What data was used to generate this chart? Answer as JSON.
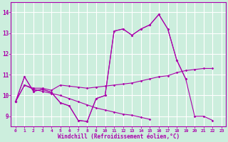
{
  "background_color": "#cceedd",
  "grid_color": "#ffffff",
  "line_color": "#aa00aa",
  "xlabel": "Windchill (Refroidissement éolien,°C)",
  "xlabel_color": "#aa00aa",
  "ylim": [
    8.5,
    14.5
  ],
  "xlim": [
    -0.5,
    23.5
  ],
  "yticks": [
    9,
    10,
    11,
    12,
    13,
    14
  ],
  "xticks": [
    0,
    1,
    2,
    3,
    4,
    5,
    6,
    7,
    8,
    9,
    10,
    11,
    12,
    13,
    14,
    15,
    16,
    17,
    18,
    19,
    20,
    21,
    22,
    23
  ],
  "series": [
    [
      9.7,
      10.9,
      10.2,
      10.3,
      10.15,
      9.65,
      9.5,
      8.8,
      8.75,
      9.85,
      10.0,
      13.1,
      13.2,
      12.9,
      13.2,
      13.4,
      13.9,
      13.2,
      11.7,
      10.8,
      null,
      null,
      null,
      null
    ],
    [
      9.7,
      10.9,
      10.2,
      10.3,
      10.15,
      9.65,
      9.5,
      8.8,
      8.75,
      9.85,
      10.0,
      13.1,
      13.2,
      12.9,
      13.2,
      13.4,
      13.9,
      13.2,
      11.7,
      10.8,
      9.0,
      9.0,
      8.8,
      null
    ],
    [
      9.7,
      10.5,
      10.35,
      10.35,
      10.25,
      10.5,
      10.45,
      10.4,
      10.35,
      10.4,
      10.45,
      10.5,
      10.55,
      10.6,
      10.7,
      10.8,
      10.9,
      10.95,
      11.1,
      11.2,
      11.25,
      11.3,
      11.3,
      null
    ],
    [
      9.7,
      10.5,
      10.3,
      10.2,
      10.1,
      10.0,
      9.85,
      9.7,
      9.55,
      9.4,
      9.3,
      9.2,
      9.1,
      9.05,
      8.95,
      8.85,
      null,
      null,
      null,
      null,
      null,
      null,
      null,
      null
    ]
  ]
}
